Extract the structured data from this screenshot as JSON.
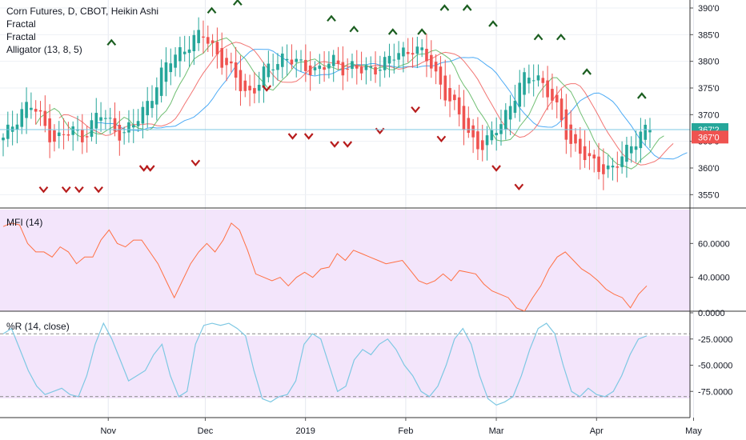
{
  "legend": {
    "main_title": "Corn Futures, D, CBOT, Heikin Ashi",
    "fractal_1": "Fractal",
    "fractal_2": "Fractal",
    "alligator": "Alligator (13, 8, 5)",
    "mfi": "MFI (14)",
    "williams_r": "%R (14, close)"
  },
  "colors": {
    "up": "#26a69a",
    "down": "#ef5350",
    "fractal_up": "#1b5e20",
    "fractal_down": "#b71c1c",
    "jaw": "#2196f3",
    "teeth": "#ef5350",
    "lips": "#4caf50",
    "mfi_line": "#ff7043",
    "wr_line": "#7ec8e3",
    "indicator_bg": "#f3e5fb"
  },
  "chart_data": [
    {
      "type": "candlestick",
      "title": "Corn Futures, D, CBOT, Heikin Ashi",
      "y_ticks": [
        "355'0",
        "360'0",
        "365'0",
        "370'0",
        "375'0",
        "380'0",
        "385'0",
        "390'0"
      ],
      "ylim": [
        352.5,
        391.5
      ],
      "x_ticks": [
        "Nov",
        "Dec",
        "2019",
        "Feb",
        "Mar",
        "Apr",
        "May"
      ],
      "last_price_labels": [
        "367'2",
        "367'0"
      ],
      "candle_count": 140,
      "ha_close_path": [
        365,
        368,
        371,
        372,
        370,
        367,
        365.5,
        366,
        367,
        366,
        368,
        370,
        369,
        367,
        366.5,
        368,
        371,
        374,
        377,
        380,
        382,
        383,
        384,
        385,
        383,
        380,
        378,
        376,
        374,
        375,
        378,
        380,
        381,
        380,
        379,
        379,
        378.5,
        379,
        380,
        379,
        379,
        378,
        378.5,
        379.5,
        380,
        381,
        382,
        383,
        381,
        379,
        376,
        373,
        370,
        367,
        365,
        364,
        366,
        369,
        372,
        375,
        377,
        378,
        375,
        372,
        368,
        365,
        363,
        361,
        360.5,
        360,
        360,
        362,
        365,
        367,
        367.2
      ],
      "fractals_up": [
        {
          "x": "2018-11-02",
          "y": 383.5
        },
        {
          "x": "2018-12-03",
          "y": 389.5
        },
        {
          "x": "2018-12-11",
          "y": 391
        },
        {
          "x": "2019-01-09",
          "y": 388
        },
        {
          "x": "2019-01-16",
          "y": 386
        },
        {
          "x": "2019-01-28",
          "y": 385.5
        },
        {
          "x": "2019-02-06",
          "y": 385.5
        },
        {
          "x": "2019-02-13",
          "y": 390
        },
        {
          "x": "2019-02-20",
          "y": 390
        },
        {
          "x": "2019-02-28",
          "y": 387
        },
        {
          "x": "2019-03-14",
          "y": 384.5
        },
        {
          "x": "2019-03-21",
          "y": 384.5
        },
        {
          "x": "2019-03-29",
          "y": 378
        },
        {
          "x": "2019-04-15",
          "y": 373.5
        }
      ],
      "fractals_down": [
        {
          "x": "2018-10-12",
          "y": 356
        },
        {
          "x": "2018-10-19",
          "y": 356
        },
        {
          "x": "2018-10-23",
          "y": 356
        },
        {
          "x": "2018-10-29",
          "y": 356
        },
        {
          "x": "2018-11-12",
          "y": 360
        },
        {
          "x": "2018-11-14",
          "y": 360
        },
        {
          "x": "2018-11-28",
          "y": 361
        },
        {
          "x": "2018-12-20",
          "y": 375
        },
        {
          "x": "2018-12-28",
          "y": 366
        },
        {
          "x": "2019-01-02",
          "y": 366
        },
        {
          "x": "2019-01-10",
          "y": 364.5
        },
        {
          "x": "2019-01-14",
          "y": 364.5
        },
        {
          "x": "2019-01-24",
          "y": 367
        },
        {
          "x": "2019-02-04",
          "y": 371
        },
        {
          "x": "2019-02-12",
          "y": 365.5
        },
        {
          "x": "2019-03-01",
          "y": 360
        },
        {
          "x": "2019-03-08",
          "y": 356.5
        }
      ]
    },
    {
      "type": "line",
      "title": "MFI (14)",
      "y_ticks": [
        "40.0000",
        "60.0000"
      ],
      "ylim": [
        20,
        80
      ],
      "values": [
        70,
        72,
        71,
        60,
        55,
        55,
        52,
        58,
        55,
        48,
        52,
        52,
        62,
        68,
        60,
        58,
        62,
        62,
        55,
        48,
        38,
        28,
        38,
        48,
        55,
        60,
        55,
        62,
        72,
        68,
        56,
        42,
        40,
        38,
        40,
        35,
        40,
        43,
        40,
        45,
        46,
        54,
        50,
        56,
        54,
        52,
        50,
        48,
        49,
        50,
        44,
        38,
        36,
        38,
        42,
        38,
        44,
        43,
        42,
        36,
        32,
        30,
        28,
        22,
        20,
        28,
        35,
        45,
        52,
        55,
        50,
        45,
        42,
        38,
        33,
        30,
        28,
        22,
        30,
        35
      ]
    },
    {
      "type": "line",
      "title": "%R (14, close)",
      "y_ticks": [
        "0.0000",
        "-25.0000",
        "-50.0000",
        "-75.0000"
      ],
      "ylim": [
        -100,
        0
      ],
      "dashed_levels": [
        -20,
        -80
      ],
      "values": [
        -20,
        -15,
        -35,
        -55,
        -70,
        -78,
        -75,
        -72,
        -78,
        -80,
        -60,
        -30,
        -10,
        -25,
        -45,
        -65,
        -60,
        -55,
        -40,
        -30,
        -60,
        -80,
        -75,
        -30,
        -12,
        -10,
        -12,
        -10,
        -15,
        -22,
        -55,
        -82,
        -85,
        -80,
        -78,
        -65,
        -30,
        -20,
        -25,
        -50,
        -75,
        -70,
        -45,
        -35,
        -40,
        -30,
        -25,
        -35,
        -50,
        -60,
        -75,
        -80,
        -70,
        -50,
        -25,
        -15,
        -30,
        -60,
        -82,
        -88,
        -85,
        -80,
        -60,
        -35,
        -15,
        -10,
        -20,
        -50,
        -75,
        -80,
        -72,
        -78,
        -80,
        -75,
        -60,
        -40,
        -25,
        -22
      ]
    }
  ]
}
